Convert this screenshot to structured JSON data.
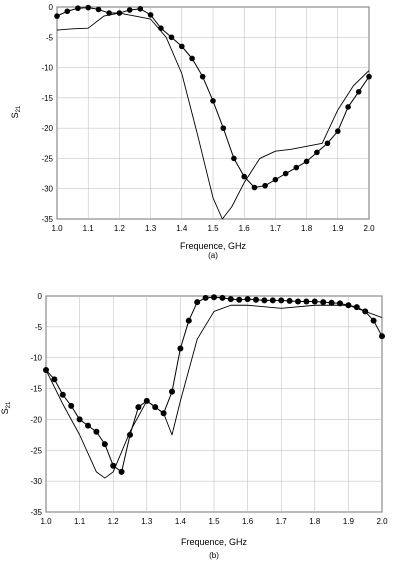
{
  "chart_data": [
    {
      "type": "line",
      "caption": "(a)",
      "xlabel": "Frequence, GHz",
      "ylabel": "S21",
      "xlim": [
        1.0,
        2.0
      ],
      "ylim": [
        -35,
        0
      ],
      "x_ticks": [
        "1.0",
        "1.1",
        "1.2",
        "1.3",
        "1.4",
        "1.5",
        "1.6",
        "1.7",
        "1.8",
        "1.9",
        "2.0"
      ],
      "y_ticks": [
        "0",
        "-5",
        "-10",
        "-15",
        "-20",
        "-25",
        "-30",
        "-35"
      ],
      "grid": true,
      "legend": "none",
      "series": [
        {
          "style": "markers",
          "x": [
            1.0,
            1.033,
            1.067,
            1.1,
            1.133,
            1.167,
            1.2,
            1.233,
            1.267,
            1.3,
            1.333,
            1.367,
            1.4,
            1.433,
            1.467,
            1.5,
            1.533,
            1.567,
            1.6,
            1.633,
            1.667,
            1.7,
            1.733,
            1.767,
            1.8,
            1.833,
            1.867,
            1.9,
            1.933,
            1.967,
            2.0
          ],
          "y": [
            -1.5,
            -0.7,
            -0.2,
            -0.1,
            -0.4,
            -1.0,
            -1.0,
            -0.5,
            -0.3,
            -1.3,
            -3.5,
            -5.0,
            -6.5,
            -8.5,
            -11.5,
            -15.5,
            -20.0,
            -25.0,
            -28.0,
            -29.8,
            -29.5,
            -28.5,
            -27.5,
            -26.5,
            -25.5,
            -24.0,
            -22.5,
            -20.5,
            -16.5,
            -14.0,
            -11.5
          ]
        },
        {
          "style": "line",
          "x": [
            1.0,
            1.05,
            1.1,
            1.15,
            1.2,
            1.25,
            1.3,
            1.35,
            1.4,
            1.45,
            1.5,
            1.53,
            1.56,
            1.6,
            1.65,
            1.7,
            1.75,
            1.8,
            1.85,
            1.9,
            1.95,
            2.0
          ],
          "y": [
            -3.8,
            -3.6,
            -3.5,
            -1.5,
            -1.0,
            -1.5,
            -2.0,
            -5.0,
            -11.0,
            -21.0,
            -31.5,
            -35.0,
            -33.0,
            -29.0,
            -25.0,
            -23.8,
            -23.5,
            -23.0,
            -22.5,
            -17.0,
            -13.0,
            -10.5
          ]
        }
      ]
    },
    {
      "type": "line",
      "caption": "(b)",
      "xlabel": "Frequence, GHz",
      "ylabel": "S21",
      "xlim": [
        1.0,
        2.0
      ],
      "ylim": [
        -35,
        0
      ],
      "x_ticks": [
        "1.0",
        "1.1",
        "1.2",
        "1.3",
        "1.4",
        "1.5",
        "1.6",
        "1.7",
        "1.8",
        "1.9",
        "2.0"
      ],
      "y_ticks": [
        "0",
        "-5",
        "-10",
        "-15",
        "-20",
        "-25",
        "-30",
        "-35"
      ],
      "grid": true,
      "legend": "none",
      "series": [
        {
          "style": "markers",
          "x": [
            1.0,
            1.025,
            1.05,
            1.075,
            1.1,
            1.125,
            1.15,
            1.175,
            1.2,
            1.225,
            1.25,
            1.275,
            1.3,
            1.325,
            1.35,
            1.375,
            1.4,
            1.425,
            1.45,
            1.475,
            1.5,
            1.525,
            1.55,
            1.575,
            1.6,
            1.625,
            1.65,
            1.675,
            1.7,
            1.725,
            1.75,
            1.775,
            1.8,
            1.825,
            1.85,
            1.875,
            1.9,
            1.925,
            1.95,
            1.975,
            2.0
          ],
          "y": [
            -12.0,
            -13.5,
            -16.0,
            -17.8,
            -20.0,
            -21.0,
            -22.0,
            -24.0,
            -27.5,
            -28.5,
            -22.5,
            -18.0,
            -17.0,
            -18.0,
            -19.0,
            -15.5,
            -8.5,
            -4.0,
            -1.0,
            -0.3,
            -0.2,
            -0.3,
            -0.5,
            -0.6,
            -0.5,
            -0.6,
            -0.7,
            -0.7,
            -0.7,
            -0.8,
            -0.9,
            -0.9,
            -0.9,
            -1.0,
            -1.1,
            -1.2,
            -1.5,
            -1.8,
            -2.5,
            -4.0,
            -6.5
          ]
        },
        {
          "style": "line",
          "x": [
            1.0,
            1.05,
            1.1,
            1.15,
            1.175,
            1.2,
            1.25,
            1.3,
            1.35,
            1.375,
            1.4,
            1.45,
            1.5,
            1.55,
            1.6,
            1.7,
            1.8,
            1.9,
            1.95,
            2.0
          ],
          "y": [
            -12.0,
            -17.5,
            -22.5,
            -28.5,
            -29.5,
            -28.5,
            -22.0,
            -17.0,
            -19.0,
            -22.5,
            -17.0,
            -7.0,
            -2.5,
            -1.5,
            -1.5,
            -2.0,
            -1.5,
            -1.5,
            -2.5,
            -3.5
          ]
        }
      ]
    }
  ]
}
